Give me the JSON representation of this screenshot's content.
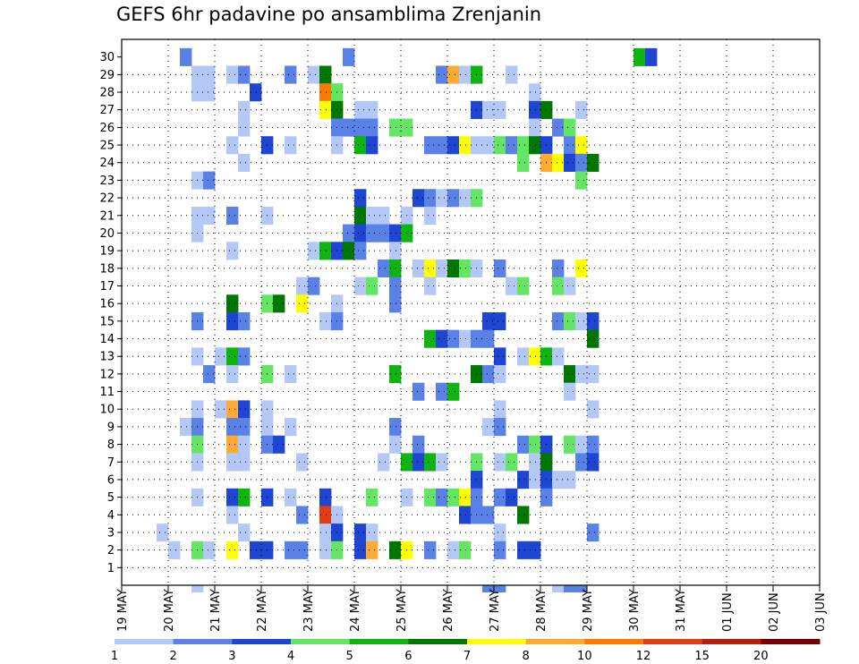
{
  "chart_data": {
    "type": "heatmap",
    "title": "GEFS 6hr padavine po ansamblima Zrenjanin",
    "x_labels": [
      "19 MAY",
      "20 MAY",
      "21 MAY",
      "22 MAY",
      "23 MAY",
      "24 MAY",
      "25 MAY",
      "26 MAY",
      "27 MAY",
      "28 MAY",
      "29 MAY",
      "30 MAY",
      "31 MAY",
      "01 JUN",
      "02 JUN",
      "03 JUN"
    ],
    "y_labels": [
      "1",
      "2",
      "3",
      "4",
      "5",
      "6",
      "7",
      "8",
      "9",
      "10",
      "11",
      "12",
      "13",
      "14",
      "15",
      "16",
      "17",
      "18",
      "19",
      "20",
      "21",
      "22",
      "23",
      "24",
      "25",
      "26",
      "27",
      "28",
      "29",
      "30"
    ],
    "time_steps_per_day": 4,
    "legend_labels": [
      "1",
      "2",
      "3",
      "4",
      "5",
      "6",
      "7",
      "8",
      "10",
      "12",
      "15",
      "20"
    ],
    "colors": [
      "#b4c8f8",
      "#5a82e6",
      "#1e46d2",
      "#64e664",
      "#10b410",
      "#007800",
      "#ffff00",
      "#ffaa32",
      "#ff7800",
      "#e13c14",
      "#b41e0a",
      "#780000"
    ],
    "grid": true,
    "cells": [
      [
        30,
        5,
        2
      ],
      [
        30,
        19,
        2
      ],
      [
        30,
        44,
        5
      ],
      [
        30,
        45,
        3
      ],
      [
        29,
        6,
        1
      ],
      [
        29,
        7,
        1
      ],
      [
        29,
        9,
        1
      ],
      [
        29,
        10,
        2
      ],
      [
        29,
        14,
        2
      ],
      [
        29,
        16,
        1
      ],
      [
        29,
        17,
        6
      ],
      [
        29,
        27,
        2
      ],
      [
        29,
        28,
        8
      ],
      [
        29,
        29,
        1
      ],
      [
        29,
        30,
        5
      ],
      [
        29,
        33,
        1
      ],
      [
        28,
        6,
        1
      ],
      [
        28,
        7,
        1
      ],
      [
        28,
        11,
        3
      ],
      [
        28,
        17,
        9
      ],
      [
        28,
        18,
        4
      ],
      [
        28,
        35,
        1
      ],
      [
        27,
        10,
        1
      ],
      [
        27,
        17,
        7
      ],
      [
        27,
        18,
        6
      ],
      [
        27,
        20,
        1
      ],
      [
        27,
        21,
        1
      ],
      [
        27,
        30,
        3
      ],
      [
        27,
        31,
        1
      ],
      [
        27,
        32,
        1
      ],
      [
        27,
        35,
        3
      ],
      [
        27,
        36,
        6
      ],
      [
        27,
        39,
        1
      ],
      [
        26,
        10,
        1
      ],
      [
        26,
        18,
        2
      ],
      [
        26,
        19,
        2
      ],
      [
        26,
        20,
        2
      ],
      [
        26,
        21,
        2
      ],
      [
        26,
        23,
        4
      ],
      [
        26,
        24,
        4
      ],
      [
        26,
        35,
        1
      ],
      [
        26,
        37,
        2
      ],
      [
        26,
        38,
        4
      ],
      [
        25,
        9,
        1
      ],
      [
        25,
        12,
        3
      ],
      [
        25,
        14,
        1
      ],
      [
        25,
        18,
        1
      ],
      [
        25,
        20,
        5
      ],
      [
        25,
        21,
        3
      ],
      [
        25,
        26,
        2
      ],
      [
        25,
        27,
        2
      ],
      [
        25,
        28,
        3
      ],
      [
        25,
        29,
        7
      ],
      [
        25,
        30,
        1
      ],
      [
        25,
        31,
        1
      ],
      [
        25,
        32,
        4
      ],
      [
        25,
        33,
        2
      ],
      [
        25,
        34,
        4
      ],
      [
        25,
        35,
        6
      ],
      [
        25,
        36,
        3
      ],
      [
        25,
        38,
        2
      ],
      [
        25,
        39,
        7
      ],
      [
        24,
        10,
        1
      ],
      [
        24,
        34,
        4
      ],
      [
        24,
        36,
        8
      ],
      [
        24,
        37,
        7
      ],
      [
        24,
        38,
        3
      ],
      [
        24,
        39,
        2
      ],
      [
        24,
        40,
        6
      ],
      [
        23,
        6,
        1
      ],
      [
        23,
        7,
        2
      ],
      [
        23,
        39,
        4
      ],
      [
        22,
        20,
        3
      ],
      [
        22,
        25,
        3
      ],
      [
        22,
        26,
        2
      ],
      [
        22,
        27,
        1
      ],
      [
        22,
        28,
        2
      ],
      [
        22,
        29,
        1
      ],
      [
        22,
        30,
        4
      ],
      [
        21,
        6,
        1
      ],
      [
        21,
        7,
        1
      ],
      [
        21,
        9,
        2
      ],
      [
        21,
        12,
        1
      ],
      [
        21,
        20,
        6
      ],
      [
        21,
        21,
        1
      ],
      [
        21,
        22,
        1
      ],
      [
        21,
        24,
        1
      ],
      [
        21,
        26,
        1
      ],
      [
        20,
        6,
        1
      ],
      [
        20,
        19,
        2
      ],
      [
        20,
        20,
        3
      ],
      [
        20,
        21,
        2
      ],
      [
        20,
        22,
        2
      ],
      [
        20,
        23,
        3
      ],
      [
        20,
        24,
        5
      ],
      [
        19,
        9,
        1
      ],
      [
        19,
        16,
        1
      ],
      [
        19,
        17,
        5
      ],
      [
        19,
        18,
        3
      ],
      [
        19,
        19,
        6
      ],
      [
        19,
        20,
        2
      ],
      [
        19,
        23,
        1
      ],
      [
        18,
        22,
        2
      ],
      [
        18,
        23,
        5
      ],
      [
        18,
        25,
        1
      ],
      [
        18,
        26,
        7
      ],
      [
        18,
        27,
        1
      ],
      [
        18,
        28,
        6
      ],
      [
        18,
        29,
        4
      ],
      [
        18,
        30,
        1
      ],
      [
        18,
        32,
        2
      ],
      [
        18,
        37,
        2
      ],
      [
        18,
        39,
        7
      ],
      [
        17,
        15,
        1
      ],
      [
        17,
        16,
        2
      ],
      [
        17,
        20,
        1
      ],
      [
        17,
        21,
        4
      ],
      [
        17,
        23,
        2
      ],
      [
        17,
        26,
        1
      ],
      [
        17,
        33,
        1
      ],
      [
        17,
        34,
        4
      ],
      [
        17,
        37,
        4
      ],
      [
        17,
        38,
        1
      ],
      [
        16,
        9,
        6
      ],
      [
        16,
        12,
        4
      ],
      [
        16,
        13,
        6
      ],
      [
        16,
        15,
        7
      ],
      [
        16,
        18,
        1
      ],
      [
        16,
        23,
        2
      ],
      [
        15,
        6,
        2
      ],
      [
        15,
        9,
        3
      ],
      [
        15,
        10,
        2
      ],
      [
        15,
        17,
        1
      ],
      [
        15,
        18,
        2
      ],
      [
        15,
        31,
        3
      ],
      [
        15,
        32,
        3
      ],
      [
        15,
        37,
        2
      ],
      [
        15,
        38,
        4
      ],
      [
        15,
        39,
        1
      ],
      [
        15,
        40,
        3
      ],
      [
        14,
        26,
        5
      ],
      [
        14,
        27,
        3
      ],
      [
        14,
        28,
        2
      ],
      [
        14,
        29,
        1
      ],
      [
        14,
        30,
        2
      ],
      [
        14,
        31,
        2
      ],
      [
        14,
        40,
        6
      ],
      [
        13,
        6,
        1
      ],
      [
        13,
        8,
        1
      ],
      [
        13,
        9,
        5
      ],
      [
        13,
        10,
        2
      ],
      [
        13,
        32,
        3
      ],
      [
        13,
        34,
        1
      ],
      [
        13,
        35,
        7
      ],
      [
        13,
        36,
        5
      ],
      [
        13,
        37,
        1
      ],
      [
        12,
        7,
        2
      ],
      [
        12,
        9,
        1
      ],
      [
        12,
        12,
        4
      ],
      [
        12,
        14,
        1
      ],
      [
        12,
        23,
        5
      ],
      [
        12,
        30,
        6
      ],
      [
        12,
        31,
        2
      ],
      [
        12,
        32,
        1
      ],
      [
        12,
        38,
        6
      ],
      [
        12,
        39,
        1
      ],
      [
        12,
        40,
        1
      ],
      [
        11,
        25,
        2
      ],
      [
        11,
        27,
        2
      ],
      [
        11,
        28,
        5
      ],
      [
        11,
        38,
        1
      ],
      [
        10,
        6,
        1
      ],
      [
        10,
        8,
        1
      ],
      [
        10,
        9,
        8
      ],
      [
        10,
        10,
        3
      ],
      [
        10,
        12,
        1
      ],
      [
        10,
        32,
        1
      ],
      [
        10,
        40,
        1
      ],
      [
        9,
        5,
        1
      ],
      [
        9,
        6,
        2
      ],
      [
        9,
        9,
        2
      ],
      [
        9,
        10,
        2
      ],
      [
        9,
        12,
        1
      ],
      [
        9,
        14,
        1
      ],
      [
        9,
        23,
        2
      ],
      [
        9,
        31,
        1
      ],
      [
        9,
        32,
        2
      ],
      [
        8,
        6,
        4
      ],
      [
        8,
        9,
        8
      ],
      [
        8,
        10,
        1
      ],
      [
        8,
        12,
        2
      ],
      [
        8,
        13,
        3
      ],
      [
        8,
        23,
        1
      ],
      [
        8,
        25,
        2
      ],
      [
        8,
        34,
        2
      ],
      [
        8,
        35,
        4
      ],
      [
        8,
        36,
        3
      ],
      [
        8,
        38,
        4
      ],
      [
        8,
        39,
        1
      ],
      [
        8,
        40,
        2
      ],
      [
        7,
        6,
        1
      ],
      [
        7,
        9,
        1
      ],
      [
        7,
        10,
        1
      ],
      [
        7,
        15,
        1
      ],
      [
        7,
        22,
        1
      ],
      [
        7,
        24,
        5
      ],
      [
        7,
        25,
        3
      ],
      [
        7,
        26,
        5
      ],
      [
        7,
        27,
        1
      ],
      [
        7,
        30,
        4
      ],
      [
        7,
        32,
        1
      ],
      [
        7,
        33,
        4
      ],
      [
        7,
        35,
        1
      ],
      [
        7,
        36,
        6
      ],
      [
        7,
        39,
        2
      ],
      [
        7,
        40,
        3
      ],
      [
        6,
        30,
        3
      ],
      [
        6,
        34,
        3
      ],
      [
        6,
        35,
        1
      ],
      [
        6,
        36,
        3
      ],
      [
        6,
        37,
        1
      ],
      [
        6,
        38,
        1
      ],
      [
        5,
        6,
        1
      ],
      [
        5,
        9,
        3
      ],
      [
        5,
        10,
        5
      ],
      [
        5,
        12,
        3
      ],
      [
        5,
        14,
        1
      ],
      [
        5,
        17,
        3
      ],
      [
        5,
        21,
        4
      ],
      [
        5,
        24,
        1
      ],
      [
        5,
        26,
        4
      ],
      [
        5,
        27,
        2
      ],
      [
        5,
        28,
        4
      ],
      [
        5,
        29,
        7
      ],
      [
        5,
        30,
        2
      ],
      [
        5,
        32,
        2
      ],
      [
        5,
        33,
        3
      ],
      [
        5,
        36,
        2
      ],
      [
        4,
        9,
        1
      ],
      [
        4,
        15,
        2
      ],
      [
        4,
        17,
        10
      ],
      [
        4,
        18,
        1
      ],
      [
        4,
        29,
        3
      ],
      [
        4,
        30,
        2
      ],
      [
        4,
        31,
        2
      ],
      [
        4,
        34,
        6
      ],
      [
        3,
        3,
        1
      ],
      [
        3,
        10,
        1
      ],
      [
        3,
        17,
        1
      ],
      [
        3,
        18,
        3
      ],
      [
        3,
        20,
        3
      ],
      [
        3,
        21,
        1
      ],
      [
        3,
        32,
        1
      ],
      [
        3,
        40,
        2
      ],
      [
        2,
        4,
        1
      ],
      [
        2,
        6,
        4
      ],
      [
        2,
        7,
        1
      ],
      [
        2,
        9,
        7
      ],
      [
        2,
        11,
        3
      ],
      [
        2,
        12,
        3
      ],
      [
        2,
        14,
        2
      ],
      [
        2,
        15,
        2
      ],
      [
        2,
        17,
        1
      ],
      [
        2,
        18,
        4
      ],
      [
        2,
        20,
        3
      ],
      [
        2,
        21,
        8
      ],
      [
        2,
        23,
        6
      ],
      [
        2,
        24,
        7
      ],
      [
        2,
        26,
        2
      ],
      [
        2,
        28,
        1
      ],
      [
        2,
        29,
        4
      ],
      [
        2,
        32,
        2
      ],
      [
        2,
        34,
        3
      ],
      [
        2,
        35,
        3
      ]
    ],
    "below_axis_cells": [
      [
        6,
        1
      ],
      [
        31,
        2
      ],
      [
        32,
        2
      ],
      [
        37,
        1
      ],
      [
        38,
        2
      ],
      [
        39,
        2
      ]
    ]
  }
}
